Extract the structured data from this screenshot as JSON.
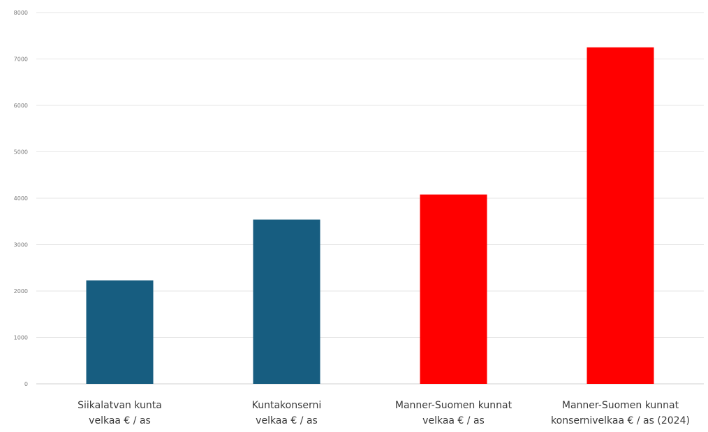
{
  "chart_data": {
    "type": "bar",
    "title": "",
    "xlabel": "",
    "ylabel": "",
    "ylim": [
      0,
      8000
    ],
    "yticks": [
      0,
      1000,
      2000,
      3000,
      4000,
      5000,
      6000,
      7000,
      8000
    ],
    "grid": true,
    "legend": "none",
    "categories": [
      [
        "Siikalatvan kunta",
        "velkaa € / as"
      ],
      [
        "Kuntakonserni",
        "velkaa € / as"
      ],
      [
        "Manner-Suomen kunnat",
        "velkaa € / as"
      ],
      [
        "Manner-Suomen kunnat",
        "konsernivelkaa € / as (2024)"
      ]
    ],
    "values": [
      2230,
      3540,
      4080,
      7250
    ],
    "colors": [
      "#175d80",
      "#175d80",
      "#ff0000",
      "#ff0000"
    ]
  }
}
